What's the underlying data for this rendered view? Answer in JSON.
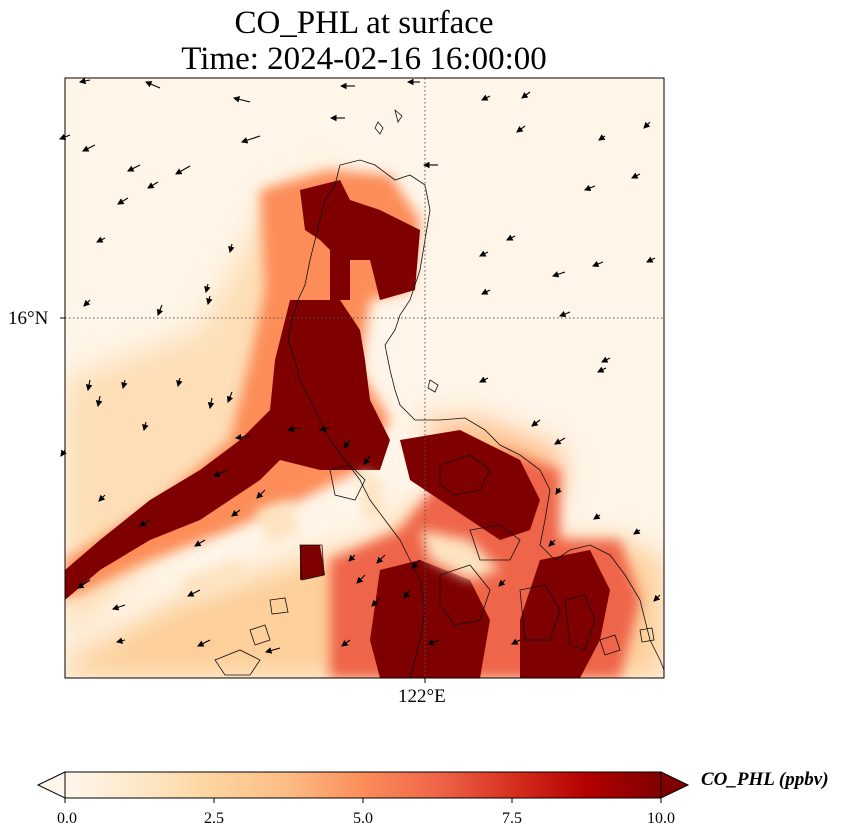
{
  "title": {
    "line1": "CO_PHL at surface",
    "line2": "Time: 2024-02-16 16:00:00"
  },
  "axes": {
    "lat_label": "16°N",
    "lon_label": "122°E"
  },
  "colorbar": {
    "label": "CO_PHL (ppbv)",
    "ticks": [
      "0.0",
      "2.5",
      "5.0",
      "7.5",
      "10.0"
    ],
    "min": 0,
    "max": 10,
    "extend": "both",
    "colormap": "OrRd",
    "colors": [
      "#fff7ec",
      "#fee8c8",
      "#fdd49e",
      "#fdbb84",
      "#fc8d59",
      "#ef6548",
      "#d7301f",
      "#b30000",
      "#7f0000"
    ]
  },
  "map": {
    "gridlines": "dotted",
    "features": [
      "coastlines",
      "wind-vectors",
      "co-concentration-field"
    ]
  }
}
